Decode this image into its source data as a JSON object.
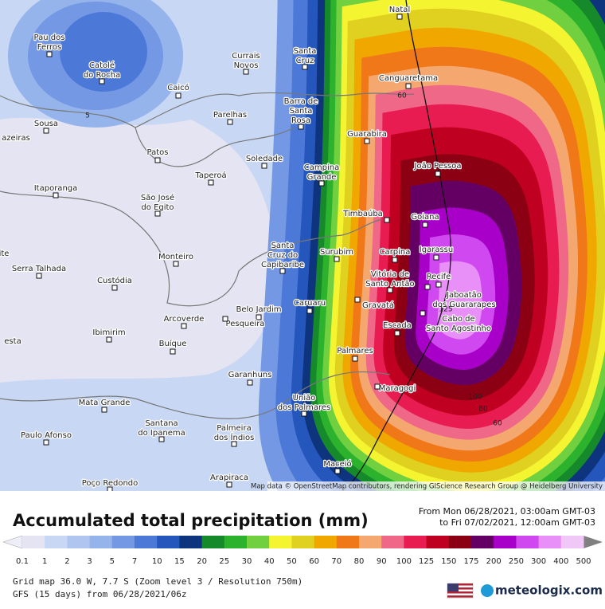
{
  "map": {
    "attribution": "Map data © OpenStreetMap contributors, rendering GIScience Research Group @ Heidelberg University",
    "cities": [
      {
        "lines": [
          "Natal"
        ]
      },
      {
        "lines": [
          "Pau dos",
          "Ferros"
        ]
      },
      {
        "lines": [
          "Catolé",
          "do Rocha"
        ]
      },
      {
        "lines": [
          "Currais",
          "Novos"
        ]
      },
      {
        "lines": [
          "Santa",
          "Cruz"
        ]
      },
      {
        "lines": [
          "Canguaretama"
        ]
      },
      {
        "lines": [
          "Caicó"
        ]
      },
      {
        "lines": [
          "Barra de",
          "Santa",
          "Rosa"
        ]
      },
      {
        "lines": [
          "Parelhas"
        ]
      },
      {
        "lines": [
          "Sousa"
        ]
      },
      {
        "lines": [
          "azeiras"
        ]
      },
      {
        "lines": [
          "Guarabira"
        ]
      },
      {
        "lines": [
          "Patos"
        ]
      },
      {
        "lines": [
          "Soledade"
        ]
      },
      {
        "lines": [
          "Campina",
          "Grande"
        ]
      },
      {
        "lines": [
          "João Pessoa"
        ]
      },
      {
        "lines": [
          "Taperoá"
        ]
      },
      {
        "lines": [
          "Itaporanga"
        ]
      },
      {
        "lines": [
          "São José",
          "do Egito"
        ]
      },
      {
        "lines": [
          "Timbaúba"
        ]
      },
      {
        "lines": [
          "Goiana"
        ]
      },
      {
        "lines": [
          "Santa",
          "Cruz do",
          "Capibaribe"
        ]
      },
      {
        "lines": [
          "Surubim"
        ]
      },
      {
        "lines": [
          "Carpina"
        ]
      },
      {
        "lines": [
          "Igarassu"
        ]
      },
      {
        "lines": [
          "Monteiro"
        ]
      },
      {
        "lines": [
          "ite"
        ]
      },
      {
        "lines": [
          "Serra Talhada"
        ]
      },
      {
        "lines": [
          "Vitória de",
          "Santo Antão"
        ]
      },
      {
        "lines": [
          "Recife"
        ]
      },
      {
        "lines": [
          "Custódia"
        ]
      },
      {
        "lines": [
          "Jaboatão",
          "dos Guararapes"
        ]
      },
      {
        "lines": [
          "Caruaru"
        ]
      },
      {
        "lines": [
          "Gravatá"
        ]
      },
      {
        "lines": [
          "Belo Jardim"
        ]
      },
      {
        "lines": [
          "Cabo de",
          "Santo Agostinho"
        ]
      },
      {
        "lines": [
          "Arcoverde"
        ]
      },
      {
        "lines": [
          "Pesqueira"
        ]
      },
      {
        "lines": [
          "Escada"
        ]
      },
      {
        "lines": [
          "Ibimirim"
        ]
      },
      {
        "lines": [
          "esta"
        ]
      },
      {
        "lines": [
          "Buíque"
        ]
      },
      {
        "lines": [
          "Palmares"
        ]
      },
      {
        "lines": [
          "Garanhuns"
        ]
      },
      {
        "lines": [
          "Maragogi"
        ]
      },
      {
        "lines": [
          "União",
          "dos Palmares"
        ]
      },
      {
        "lines": [
          "Mata Grande"
        ]
      },
      {
        "lines": [
          "Santana",
          "do Ipanema"
        ]
      },
      {
        "lines": [
          "Palmeira",
          "dos Índios"
        ]
      },
      {
        "lines": [
          "Paulo Afonso"
        ]
      },
      {
        "lines": [
          "Maceió"
        ]
      },
      {
        "lines": [
          "Arapiraca"
        ]
      },
      {
        "lines": [
          "Poço Redondo"
        ]
      }
    ],
    "contour_labels": [
      "5",
      "60",
      "125",
      "100",
      "80",
      "60"
    ]
  },
  "legend": {
    "title": "Accumulated total precipitation (mm)",
    "period_from": "From Mon 06/28/2021, 03:00am GMT-03",
    "period_to": "to Fri 07/02/2021, 12:00am GMT-03",
    "levels": [
      0.1,
      1,
      2,
      3,
      5,
      7,
      10,
      15,
      20,
      25,
      30,
      40,
      50,
      60,
      70,
      80,
      90,
      100,
      125,
      150,
      175,
      200,
      250,
      300,
      400,
      500
    ],
    "colors": [
      "#e4e4f2",
      "#c8d8f4",
      "#b0c6f0",
      "#96b4ec",
      "#7498e4",
      "#4c78d8",
      "#2456bc",
      "#0e347e",
      "#168a2a",
      "#2cb22c",
      "#70d040",
      "#f4f430",
      "#e0d020",
      "#f0a800",
      "#f07818",
      "#f4a870",
      "#f06888",
      "#e81c50",
      "#c00020",
      "#8c0014",
      "#640064",
      "#a800c8",
      "#d048f0",
      "#e890f8",
      "#f0c8f8"
    ]
  },
  "footer": {
    "grid": "Grid map 36.0 W, 7.7 S (Zoom level 3 / Resolution 750m)",
    "model": "GFS (15 days) from 06/28/2021/06z",
    "brand": "meteologix.com"
  }
}
